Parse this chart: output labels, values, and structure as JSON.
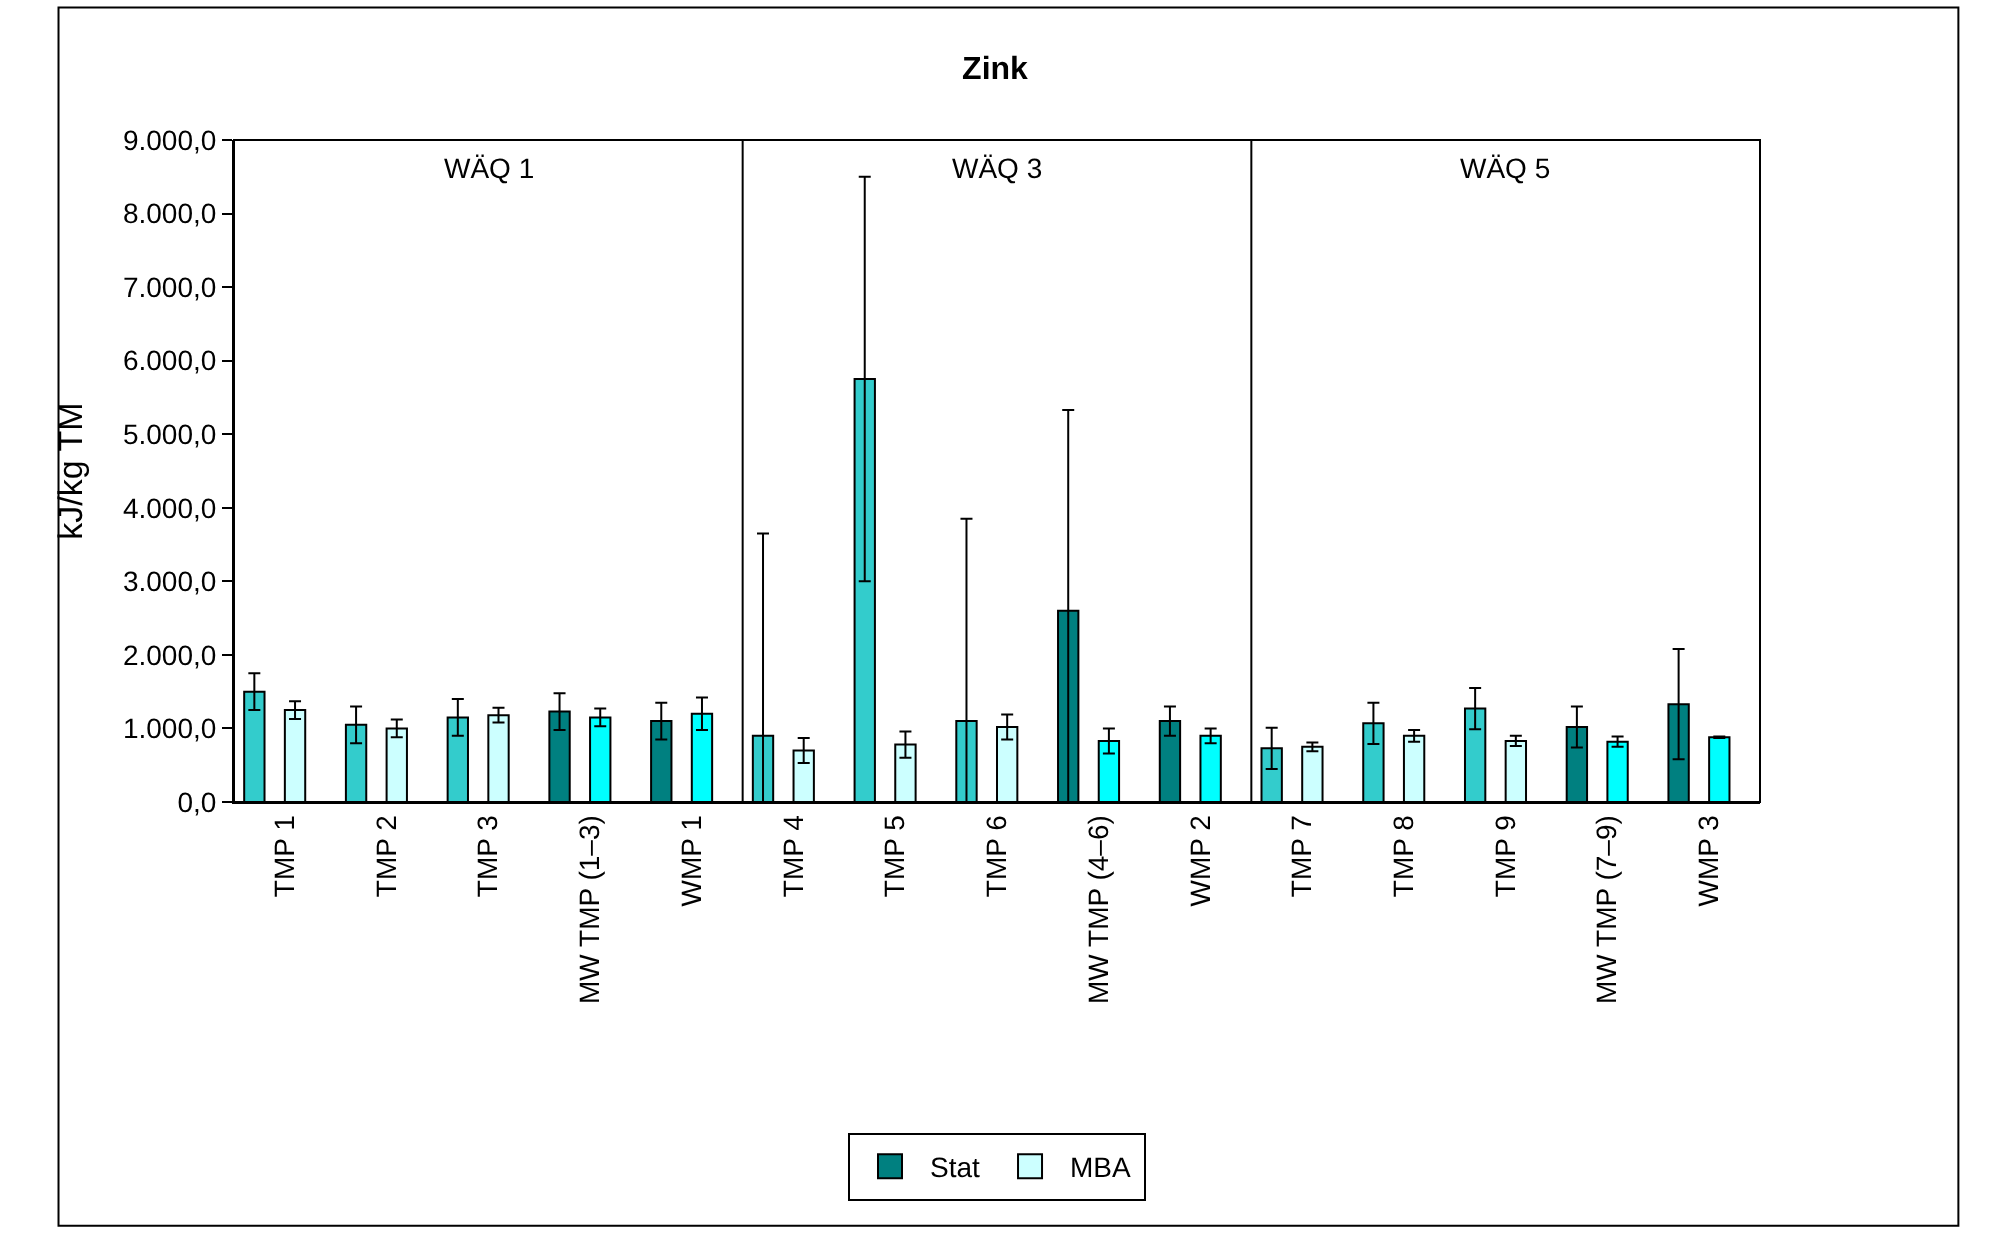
{
  "chart_data": {
    "type": "bar",
    "title": "Zink",
    "ylabel": "kJ/kg TM",
    "categories": [
      "TMP 1",
      "TMP 2",
      "TMP 3",
      "MW TMP (1–3)",
      "WMP 1",
      "TMP 4",
      "TMP 5",
      "TMP 6",
      "MW TMP (4–6)",
      "WMP 2",
      "TMP 7",
      "TMP 8",
      "TMP 9",
      "MW TMP (7–9)",
      "WMP 3"
    ],
    "series": [
      {
        "name": "Stat",
        "color": "#008080",
        "colors": [
          "#33cccc",
          "#33cccc",
          "#33cccc",
          "#008080",
          "#008080",
          "#33cccc",
          "#33cccc",
          "#33cccc",
          "#008080",
          "#008080",
          "#33cccc",
          "#33cccc",
          "#33cccc",
          "#008080",
          "#008080"
        ],
        "values": [
          1500,
          1050,
          1150,
          1230,
          1100,
          900,
          5750,
          1100,
          2600,
          1100,
          730,
          1070,
          1270,
          1020,
          1330
        ],
        "errors": [
          250,
          250,
          250,
          250,
          250,
          [
            0,
            3650
          ],
          [
            3000,
            8500
          ],
          [
            0,
            3850
          ],
          [
            0,
            5330
          ],
          200,
          280,
          280,
          280,
          280,
          750
        ]
      },
      {
        "name": "MBA",
        "color": "#ccffff",
        "colors": [
          "#ccffff",
          "#ccffff",
          "#ccffff",
          "#00ffff",
          "#00ffff",
          "#ccffff",
          "#ccffff",
          "#ccffff",
          "#00ffff",
          "#00ffff",
          "#ccffff",
          "#ccffff",
          "#ccffff",
          "#00ffff",
          "#00ffff"
        ],
        "values": [
          1250,
          1000,
          1180,
          1150,
          1200,
          700,
          780,
          1020,
          830,
          900,
          750,
          900,
          830,
          820,
          880
        ],
        "errors": [
          120,
          120,
          100,
          120,
          220,
          170,
          180,
          170,
          170,
          100,
          60,
          80,
          70,
          70,
          10
        ]
      }
    ],
    "annotations": [
      "WÄQ 1",
      "WÄQ 3",
      "WÄQ 5"
    ],
    "ylim": [
      0,
      9000
    ],
    "yticks": [
      {
        "value": 0,
        "label": "0,0"
      },
      {
        "value": 1000,
        "label": "1.000,0"
      },
      {
        "value": 2000,
        "label": "2.000,0"
      },
      {
        "value": 3000,
        "label": "3.000,0"
      },
      {
        "value": 4000,
        "label": "4.000,0"
      },
      {
        "value": 5000,
        "label": "5.000,0"
      },
      {
        "value": 6000,
        "label": "6.000,0"
      },
      {
        "value": 7000,
        "label": "7.000,0"
      },
      {
        "value": 8000,
        "label": "8.000,0"
      },
      {
        "value": 9000,
        "label": "9.000,0"
      }
    ],
    "legend": "bottom"
  }
}
